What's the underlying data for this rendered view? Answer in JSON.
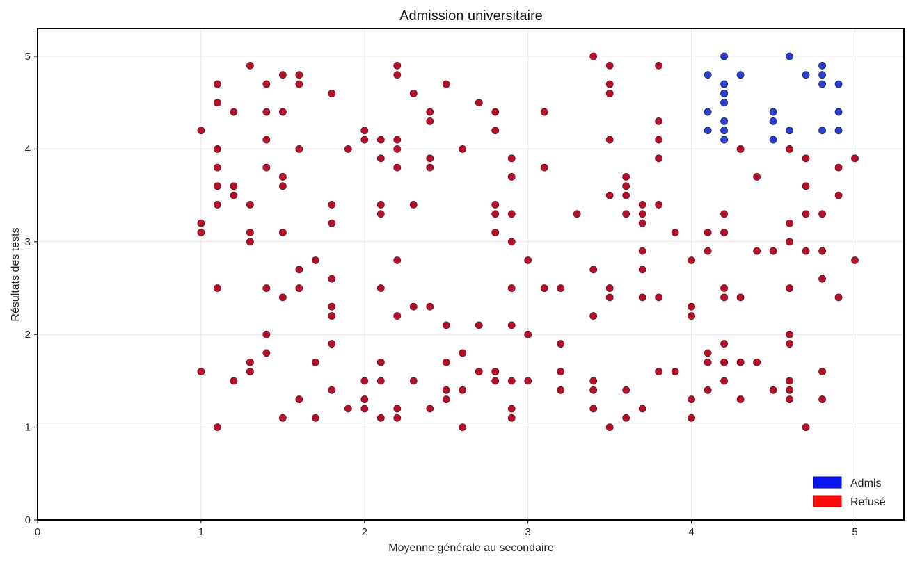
{
  "chart_data": {
    "type": "scatter",
    "title": "Admission universitaire",
    "xlabel": "Moyenne générale au secondaire",
    "ylabel": "Résultats des tests",
    "xlim": [
      0,
      5.3
    ],
    "ylim": [
      0,
      5.3
    ],
    "xticks": [
      "0",
      "1",
      "2",
      "3",
      "4",
      "5"
    ],
    "yticks": [
      "0",
      "1",
      "2",
      "3",
      "4",
      "5"
    ],
    "grid": true,
    "legend_position": "bottom-right",
    "colors": {
      "admis": "#2b3fd1",
      "refuse": "#b1122b",
      "admis_legend": "#0a14f0",
      "refuse_legend": "#ff0a0a"
    },
    "series": [
      {
        "name": "Admis",
        "points": [
          [
            4.1,
            4.8
          ],
          [
            4.1,
            4.4
          ],
          [
            4.1,
            4.2
          ],
          [
            4.2,
            5.0
          ],
          [
            4.2,
            4.7
          ],
          [
            4.2,
            4.6
          ],
          [
            4.2,
            4.5
          ],
          [
            4.2,
            4.3
          ],
          [
            4.2,
            4.2
          ],
          [
            4.2,
            4.1
          ],
          [
            4.3,
            4.8
          ],
          [
            4.5,
            4.4
          ],
          [
            4.5,
            4.3
          ],
          [
            4.5,
            4.1
          ],
          [
            4.6,
            5.0
          ],
          [
            4.6,
            4.2
          ],
          [
            4.7,
            4.8
          ],
          [
            4.8,
            4.9
          ],
          [
            4.8,
            4.8
          ],
          [
            4.8,
            4.7
          ],
          [
            4.8,
            4.2
          ],
          [
            4.9,
            4.7
          ],
          [
            4.9,
            4.4
          ],
          [
            4.9,
            4.2
          ]
        ]
      },
      {
        "name": "Refusé",
        "points": [
          [
            1.0,
            4.2
          ],
          [
            1.0,
            3.2
          ],
          [
            1.0,
            3.1
          ],
          [
            1.0,
            1.6
          ],
          [
            1.1,
            4.7
          ],
          [
            1.1,
            4.5
          ],
          [
            1.1,
            4.0
          ],
          [
            1.1,
            3.8
          ],
          [
            1.1,
            3.6
          ],
          [
            1.1,
            3.4
          ],
          [
            1.1,
            2.5
          ],
          [
            1.1,
            1.0
          ],
          [
            1.2,
            4.4
          ],
          [
            1.2,
            3.6
          ],
          [
            1.2,
            3.5
          ],
          [
            1.2,
            1.5
          ],
          [
            1.3,
            4.9
          ],
          [
            1.3,
            3.4
          ],
          [
            1.3,
            3.1
          ],
          [
            1.3,
            3.0
          ],
          [
            1.3,
            1.7
          ],
          [
            1.3,
            1.6
          ],
          [
            1.4,
            4.7
          ],
          [
            1.4,
            4.4
          ],
          [
            1.4,
            4.1
          ],
          [
            1.4,
            3.8
          ],
          [
            1.4,
            2.5
          ],
          [
            1.4,
            2.0
          ],
          [
            1.4,
            1.8
          ],
          [
            1.5,
            4.8
          ],
          [
            1.5,
            4.4
          ],
          [
            1.5,
            3.7
          ],
          [
            1.5,
            3.6
          ],
          [
            1.5,
            3.1
          ],
          [
            1.5,
            2.4
          ],
          [
            1.5,
            1.1
          ],
          [
            1.6,
            4.8
          ],
          [
            1.6,
            4.7
          ],
          [
            1.6,
            4.0
          ],
          [
            1.6,
            2.7
          ],
          [
            1.6,
            2.5
          ],
          [
            1.6,
            1.3
          ],
          [
            1.7,
            2.8
          ],
          [
            1.7,
            1.7
          ],
          [
            1.7,
            1.1
          ],
          [
            1.8,
            4.6
          ],
          [
            1.8,
            3.4
          ],
          [
            1.8,
            3.2
          ],
          [
            1.8,
            2.6
          ],
          [
            1.8,
            2.3
          ],
          [
            1.8,
            2.2
          ],
          [
            1.8,
            1.9
          ],
          [
            1.8,
            1.4
          ],
          [
            1.9,
            4.0
          ],
          [
            1.9,
            1.2
          ],
          [
            2.0,
            4.2
          ],
          [
            2.0,
            4.1
          ],
          [
            2.0,
            1.5
          ],
          [
            2.0,
            1.3
          ],
          [
            2.0,
            1.2
          ],
          [
            2.1,
            4.1
          ],
          [
            2.1,
            3.9
          ],
          [
            2.1,
            3.4
          ],
          [
            2.1,
            3.3
          ],
          [
            2.1,
            2.5
          ],
          [
            2.1,
            1.7
          ],
          [
            2.1,
            1.5
          ],
          [
            2.1,
            1.1
          ],
          [
            2.2,
            4.9
          ],
          [
            2.2,
            4.8
          ],
          [
            2.2,
            4.1
          ],
          [
            2.2,
            4.0
          ],
          [
            2.2,
            3.8
          ],
          [
            2.2,
            2.8
          ],
          [
            2.2,
            2.2
          ],
          [
            2.2,
            1.2
          ],
          [
            2.2,
            1.1
          ],
          [
            2.3,
            4.6
          ],
          [
            2.3,
            3.4
          ],
          [
            2.3,
            2.3
          ],
          [
            2.3,
            1.5
          ],
          [
            2.4,
            4.4
          ],
          [
            2.4,
            4.3
          ],
          [
            2.4,
            3.9
          ],
          [
            2.4,
            3.8
          ],
          [
            2.4,
            2.3
          ],
          [
            2.4,
            1.2
          ],
          [
            2.5,
            4.7
          ],
          [
            2.5,
            2.1
          ],
          [
            2.5,
            1.7
          ],
          [
            2.5,
            1.4
          ],
          [
            2.5,
            1.3
          ],
          [
            2.6,
            4.0
          ],
          [
            2.6,
            1.8
          ],
          [
            2.6,
            1.4
          ],
          [
            2.6,
            1.0
          ],
          [
            2.7,
            4.5
          ],
          [
            2.7,
            2.1
          ],
          [
            2.7,
            1.6
          ],
          [
            2.8,
            4.4
          ],
          [
            2.8,
            4.2
          ],
          [
            2.8,
            3.4
          ],
          [
            2.8,
            3.3
          ],
          [
            2.8,
            3.1
          ],
          [
            2.8,
            1.6
          ],
          [
            2.8,
            1.5
          ],
          [
            2.9,
            3.9
          ],
          [
            2.9,
            3.7
          ],
          [
            2.9,
            3.3
          ],
          [
            2.9,
            3.0
          ],
          [
            2.9,
            2.5
          ],
          [
            2.9,
            2.1
          ],
          [
            2.9,
            1.5
          ],
          [
            2.9,
            1.2
          ],
          [
            2.9,
            1.1
          ],
          [
            3.0,
            2.8
          ],
          [
            3.0,
            2.0
          ],
          [
            3.0,
            1.5
          ],
          [
            3.1,
            4.4
          ],
          [
            3.1,
            3.8
          ],
          [
            3.1,
            2.5
          ],
          [
            3.2,
            2.5
          ],
          [
            3.2,
            1.9
          ],
          [
            3.2,
            1.6
          ],
          [
            3.2,
            1.4
          ],
          [
            3.3,
            3.3
          ],
          [
            3.4,
            5.0
          ],
          [
            3.4,
            2.7
          ],
          [
            3.4,
            2.2
          ],
          [
            3.4,
            1.5
          ],
          [
            3.4,
            1.4
          ],
          [
            3.4,
            1.2
          ],
          [
            3.5,
            4.9
          ],
          [
            3.5,
            4.7
          ],
          [
            3.5,
            4.6
          ],
          [
            3.5,
            4.1
          ],
          [
            3.5,
            3.5
          ],
          [
            3.5,
            2.5
          ],
          [
            3.5,
            2.4
          ],
          [
            3.5,
            1.0
          ],
          [
            3.6,
            3.7
          ],
          [
            3.6,
            3.6
          ],
          [
            3.6,
            3.5
          ],
          [
            3.6,
            3.3
          ],
          [
            3.6,
            1.4
          ],
          [
            3.6,
            1.1
          ],
          [
            3.7,
            3.4
          ],
          [
            3.7,
            3.3
          ],
          [
            3.7,
            3.2
          ],
          [
            3.7,
            2.9
          ],
          [
            3.7,
            2.7
          ],
          [
            3.7,
            2.4
          ],
          [
            3.7,
            1.2
          ],
          [
            3.8,
            4.9
          ],
          [
            3.8,
            4.3
          ],
          [
            3.8,
            4.1
          ],
          [
            3.8,
            3.9
          ],
          [
            3.8,
            3.4
          ],
          [
            3.8,
            2.4
          ],
          [
            3.8,
            1.6
          ],
          [
            3.9,
            3.1
          ],
          [
            3.9,
            1.6
          ],
          [
            4.0,
            2.8
          ],
          [
            4.0,
            2.3
          ],
          [
            4.0,
            2.2
          ],
          [
            4.0,
            1.3
          ],
          [
            4.0,
            1.1
          ],
          [
            4.1,
            3.1
          ],
          [
            4.1,
            2.9
          ],
          [
            4.1,
            1.8
          ],
          [
            4.1,
            1.7
          ],
          [
            4.1,
            1.4
          ],
          [
            4.2,
            3.3
          ],
          [
            4.2,
            3.1
          ],
          [
            4.2,
            2.5
          ],
          [
            4.2,
            2.4
          ],
          [
            4.2,
            1.9
          ],
          [
            4.2,
            1.7
          ],
          [
            4.2,
            1.5
          ],
          [
            4.3,
            4.0
          ],
          [
            4.3,
            2.4
          ],
          [
            4.3,
            1.7
          ],
          [
            4.3,
            1.3
          ],
          [
            4.4,
            3.7
          ],
          [
            4.4,
            2.9
          ],
          [
            4.4,
            1.7
          ],
          [
            4.5,
            2.9
          ],
          [
            4.5,
            1.4
          ],
          [
            4.6,
            4.0
          ],
          [
            4.6,
            3.2
          ],
          [
            4.6,
            3.0
          ],
          [
            4.6,
            2.5
          ],
          [
            4.6,
            2.0
          ],
          [
            4.6,
            1.9
          ],
          [
            4.6,
            1.5
          ],
          [
            4.6,
            1.4
          ],
          [
            4.6,
            1.3
          ],
          [
            4.7,
            3.9
          ],
          [
            4.7,
            3.6
          ],
          [
            4.7,
            3.3
          ],
          [
            4.7,
            2.9
          ],
          [
            4.7,
            1.0
          ],
          [
            4.8,
            3.3
          ],
          [
            4.8,
            2.9
          ],
          [
            4.8,
            2.6
          ],
          [
            4.8,
            1.6
          ],
          [
            4.8,
            1.3
          ],
          [
            4.9,
            3.8
          ],
          [
            4.9,
            3.5
          ],
          [
            4.9,
            2.4
          ],
          [
            5.0,
            3.9
          ],
          [
            5.0,
            2.8
          ]
        ]
      }
    ],
    "legend": [
      "Admis",
      "Refusé"
    ]
  }
}
